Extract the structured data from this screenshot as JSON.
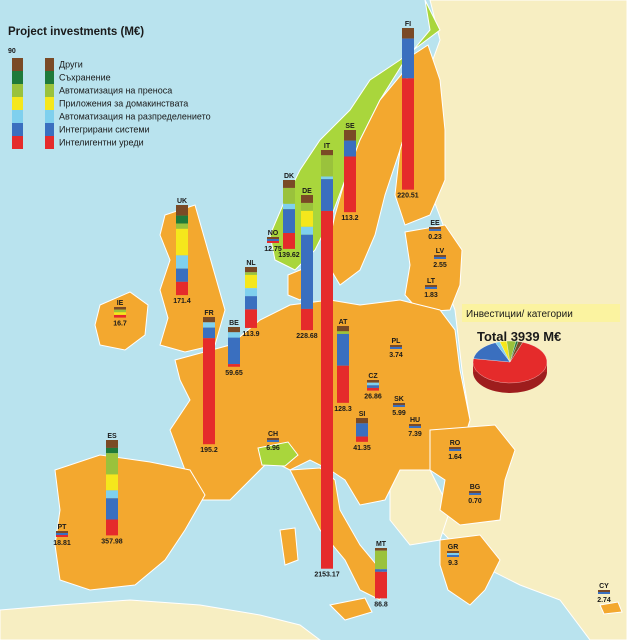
{
  "title": "Project investments (M€)",
  "scale_max": "90",
  "legend": [
    {
      "label": "Други",
      "color": "#7a4a26"
    },
    {
      "label": "Съхранение",
      "color": "#1f7a3a"
    },
    {
      "label": "Автоматизация на преноса",
      "color": "#9ac23c"
    },
    {
      "label": "Приложения за домакинствата",
      "color": "#f5e71c"
    },
    {
      "label": "Автоматизация на разпределението",
      "color": "#7fd0ee"
    },
    {
      "label": "Интегрирани системи",
      "color": "#3a6fbf"
    },
    {
      "label": "Интелигентни уреди",
      "color": "#e52b2b"
    }
  ],
  "callout": "Инвестиции/ категории",
  "total": "Total 3939 M€",
  "colors": {
    "sea": "#b9e3ee",
    "eu_land": "#f3a82f",
    "non_eu_land": "#f7eec2",
    "highlight_land": "#a9d63c",
    "border": "#ffffff"
  },
  "chart_data": {
    "type": "stacked-bar-map",
    "unit": "M€",
    "categories": [
      "Други",
      "Съхранение",
      "Автоматизация на преноса",
      "Приложения за домакинствата",
      "Автоматизация на разпределението",
      "Интегрирани системи",
      "Интелигентни уреди"
    ],
    "countries": [
      {
        "code": "FI",
        "total": "220.51",
        "segments": [
          {
            "cat": 0,
            "v": 4
          },
          {
            "cat": 5,
            "v": 15
          },
          {
            "cat": 6,
            "v": 42
          }
        ]
      },
      {
        "code": "SE",
        "total": "113.2",
        "segments": [
          {
            "cat": 0,
            "v": 4
          },
          {
            "cat": 5,
            "v": 6
          },
          {
            "cat": 6,
            "v": 21
          }
        ]
      },
      {
        "code": "IT",
        "total": "2153.17",
        "segments": [
          {
            "cat": 0,
            "v": 2
          },
          {
            "cat": 2,
            "v": 8
          },
          {
            "cat": 4,
            "v": 1
          },
          {
            "cat": 5,
            "v": 12
          },
          {
            "cat": 6,
            "v": 135
          }
        ]
      },
      {
        "code": "DK",
        "total": "139.62",
        "segments": [
          {
            "cat": 0,
            "v": 3
          },
          {
            "cat": 2,
            "v": 6
          },
          {
            "cat": 4,
            "v": 2
          },
          {
            "cat": 5,
            "v": 9
          },
          {
            "cat": 6,
            "v": 6
          }
        ]
      },
      {
        "code": "DE",
        "total": "228.68",
        "segments": [
          {
            "cat": 0,
            "v": 3
          },
          {
            "cat": 2,
            "v": 3
          },
          {
            "cat": 3,
            "v": 6
          },
          {
            "cat": 4,
            "v": 3
          },
          {
            "cat": 5,
            "v": 28
          },
          {
            "cat": 6,
            "v": 8
          }
        ]
      },
      {
        "code": "UK",
        "total": "171.4",
        "segments": [
          {
            "cat": 0,
            "v": 4
          },
          {
            "cat": 1,
            "v": 3
          },
          {
            "cat": 2,
            "v": 2
          },
          {
            "cat": 3,
            "v": 10
          },
          {
            "cat": 4,
            "v": 5
          },
          {
            "cat": 5,
            "v": 5
          },
          {
            "cat": 6,
            "v": 5
          }
        ]
      },
      {
        "code": "NL",
        "total": "113.9",
        "segments": [
          {
            "cat": 0,
            "v": 2
          },
          {
            "cat": 2,
            "v": 1
          },
          {
            "cat": 3,
            "v": 5
          },
          {
            "cat": 4,
            "v": 3
          },
          {
            "cat": 5,
            "v": 5
          },
          {
            "cat": 6,
            "v": 7
          }
        ]
      },
      {
        "code": "NO",
        "total": "12.75",
        "segments": [
          {
            "cat": 0,
            "v": 0.5
          },
          {
            "cat": 5,
            "v": 0.5
          },
          {
            "cat": 6,
            "v": 0.5
          }
        ]
      },
      {
        "code": "IE",
        "total": "16.7",
        "segments": [
          {
            "cat": 0,
            "v": 1
          },
          {
            "cat": 2,
            "v": 1
          },
          {
            "cat": 3,
            "v": 1
          },
          {
            "cat": 6,
            "v": 1
          }
        ]
      },
      {
        "code": "FR",
        "total": "195.2",
        "segments": [
          {
            "cat": 0,
            "v": 2
          },
          {
            "cat": 4,
            "v": 2
          },
          {
            "cat": 5,
            "v": 4
          },
          {
            "cat": 6,
            "v": 40
          }
        ]
      },
      {
        "code": "BE",
        "total": "59.65",
        "segments": [
          {
            "cat": 0,
            "v": 2
          },
          {
            "cat": 4,
            "v": 2
          },
          {
            "cat": 5,
            "v": 10
          },
          {
            "cat": 6,
            "v": 1
          }
        ]
      },
      {
        "code": "ES",
        "total": "357.98",
        "segments": [
          {
            "cat": 0,
            "v": 3
          },
          {
            "cat": 1,
            "v": 2
          },
          {
            "cat": 2,
            "v": 8
          },
          {
            "cat": 3,
            "v": 6
          },
          {
            "cat": 4,
            "v": 3
          },
          {
            "cat": 5,
            "v": 8
          },
          {
            "cat": 6,
            "v": 6
          }
        ]
      },
      {
        "code": "PT",
        "total": "18.81",
        "segments": [
          {
            "cat": 0,
            "v": 0.5
          },
          {
            "cat": 5,
            "v": 0.5
          },
          {
            "cat": 6,
            "v": 0.5
          }
        ]
      },
      {
        "code": "CH",
        "total": "6.96",
        "segments": [
          {
            "cat": 0,
            "v": 0.5
          },
          {
            "cat": 5,
            "v": 0.5
          }
        ]
      },
      {
        "code": "AT",
        "total": "128.3",
        "segments": [
          {
            "cat": 0,
            "v": 2
          },
          {
            "cat": 2,
            "v": 1
          },
          {
            "cat": 5,
            "v": 12
          },
          {
            "cat": 6,
            "v": 14
          }
        ]
      },
      {
        "code": "SI",
        "total": "41.35",
        "segments": [
          {
            "cat": 0,
            "v": 2
          },
          {
            "cat": 5,
            "v": 5
          },
          {
            "cat": 6,
            "v": 2
          }
        ]
      },
      {
        "code": "CZ",
        "total": "26.86",
        "segments": [
          {
            "cat": 0,
            "v": 1
          },
          {
            "cat": 4,
            "v": 1
          },
          {
            "cat": 5,
            "v": 1
          },
          {
            "cat": 6,
            "v": 1
          }
        ]
      },
      {
        "code": "SK",
        "total": "5.99",
        "segments": [
          {
            "cat": 0,
            "v": 0.5
          },
          {
            "cat": 5,
            "v": 0.5
          }
        ]
      },
      {
        "code": "HU",
        "total": "7.39",
        "segments": [
          {
            "cat": 0,
            "v": 0.5
          },
          {
            "cat": 5,
            "v": 0.5
          }
        ]
      },
      {
        "code": "PL",
        "total": "3.74",
        "segments": [
          {
            "cat": 0,
            "v": 0.5
          },
          {
            "cat": 5,
            "v": 0.5
          }
        ]
      },
      {
        "code": "EE",
        "total": "0.23",
        "segments": [
          {
            "cat": 0,
            "v": 0.5
          },
          {
            "cat": 5,
            "v": 0.5
          }
        ]
      },
      {
        "code": "LV",
        "total": "2.55",
        "segments": [
          {
            "cat": 0,
            "v": 0.5
          },
          {
            "cat": 5,
            "v": 0.5
          }
        ]
      },
      {
        "code": "LT",
        "total": "1.83",
        "segments": [
          {
            "cat": 0,
            "v": 0.5
          },
          {
            "cat": 5,
            "v": 0.5
          }
        ]
      },
      {
        "code": "RO",
        "total": "1.64",
        "segments": [
          {
            "cat": 0,
            "v": 0.5
          },
          {
            "cat": 5,
            "v": 0.5
          }
        ]
      },
      {
        "code": "BG",
        "total": "0.70",
        "segments": [
          {
            "cat": 0,
            "v": 0.5
          },
          {
            "cat": 5,
            "v": 0.5
          }
        ]
      },
      {
        "code": "GR",
        "total": "9.3",
        "segments": [
          {
            "cat": 0,
            "v": 0.5
          },
          {
            "cat": 4,
            "v": 0.5
          },
          {
            "cat": 5,
            "v": 0.5
          }
        ]
      },
      {
        "code": "MT",
        "total": "86.8",
        "segments": [
          {
            "cat": 0,
            "v": 1
          },
          {
            "cat": 2,
            "v": 7
          },
          {
            "cat": 5,
            "v": 1
          },
          {
            "cat": 6,
            "v": 10
          }
        ]
      },
      {
        "code": "CY",
        "total": "2.74",
        "segments": [
          {
            "cat": 0,
            "v": 0.5
          },
          {
            "cat": 5,
            "v": 0.5
          }
        ]
      }
    ],
    "pie": {
      "title": "Total 3939 M€",
      "values": [
        {
          "cat": 6,
          "v": 72
        },
        {
          "cat": 5,
          "v": 16
        },
        {
          "cat": 4,
          "v": 2
        },
        {
          "cat": 3,
          "v": 3
        },
        {
          "cat": 2,
          "v": 4
        },
        {
          "cat": 1,
          "v": 1
        },
        {
          "cat": 0,
          "v": 2
        }
      ]
    }
  }
}
